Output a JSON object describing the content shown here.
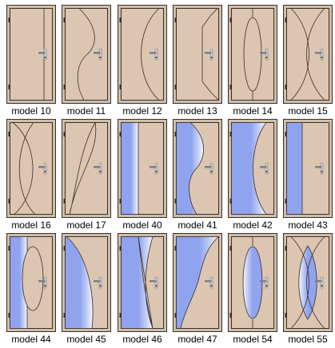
{
  "colors": {
    "frame": "#cfbeab",
    "leaf": "#dcc6b1",
    "outline": "#3a2f28",
    "glass": "#8fa3ee",
    "glass_light": "#f3f5fd",
    "handle": "#7a7f86"
  },
  "doors": [
    {
      "label": "model 10",
      "design": "line"
    },
    {
      "label": "model 11",
      "design": "wave"
    },
    {
      "label": "model 12",
      "design": "arc"
    },
    {
      "label": "model 13",
      "design": "step"
    },
    {
      "label": "model 14",
      "design": "oval"
    },
    {
      "label": "model 15",
      "design": "lens"
    },
    {
      "label": "model 16",
      "design": "lens-left"
    },
    {
      "label": "model 17",
      "design": "lens-diagonal"
    },
    {
      "label": "model 40",
      "design": "glass-strip"
    },
    {
      "label": "model 41",
      "design": "glass-wave"
    },
    {
      "label": "model 42",
      "design": "glass-arc"
    },
    {
      "label": "model 43",
      "design": "glass-step"
    },
    {
      "label": "model 44",
      "design": "glass-oval-strip"
    },
    {
      "label": "model 45",
      "design": "glass-convex"
    },
    {
      "label": "model 46",
      "design": "glass-concave"
    },
    {
      "label": "model 47",
      "design": "glass-wave-top"
    },
    {
      "label": "model 54",
      "design": "glass-oval"
    },
    {
      "label": "model 55",
      "design": "glass-lens"
    }
  ]
}
